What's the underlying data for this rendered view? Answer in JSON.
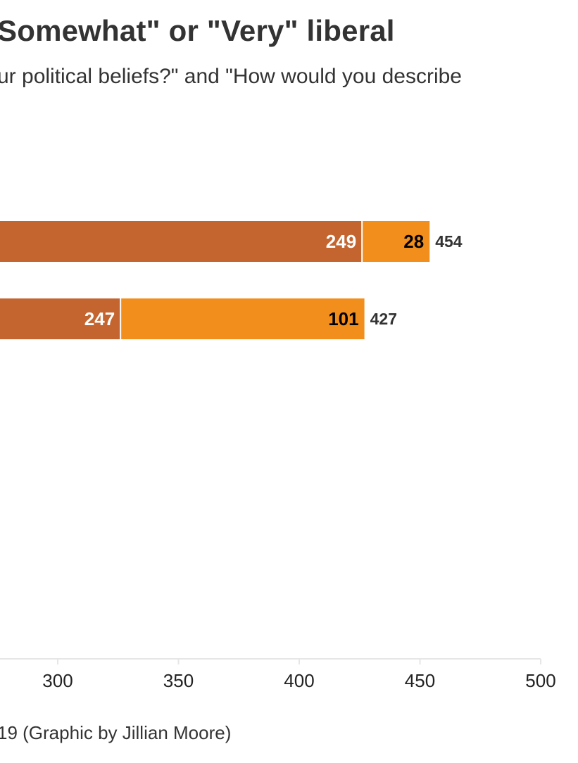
{
  "header": {
    "title": "Somewhat\" or \"Very\" liberal",
    "subtitle": "ur political beliefs?\" and \"How would you describe"
  },
  "footer": {
    "source": "19 (Graphic by Jillian Moore)"
  },
  "chart_data": {
    "type": "bar",
    "orientation": "horizontal",
    "stacked": true,
    "xlim": [
      210,
      500
    ],
    "x_ticks": [
      300,
      350,
      400,
      450,
      500
    ],
    "rows": [
      {
        "total": 454,
        "segments": [
          {
            "value": 249,
            "end": 426,
            "color": "#c46530",
            "label_color": "#ffffff"
          },
          {
            "value": 28,
            "end": 454,
            "color": "#f28e1c",
            "label_color": "#000000"
          }
        ]
      },
      {
        "total": 427,
        "segments": [
          {
            "value": 247,
            "end": 326,
            "color": "#c46530",
            "label_color": "#ffffff"
          },
          {
            "value": 101,
            "end": 427,
            "color": "#f28e1c",
            "label_color": "#000000"
          }
        ]
      }
    ],
    "grid": false
  }
}
